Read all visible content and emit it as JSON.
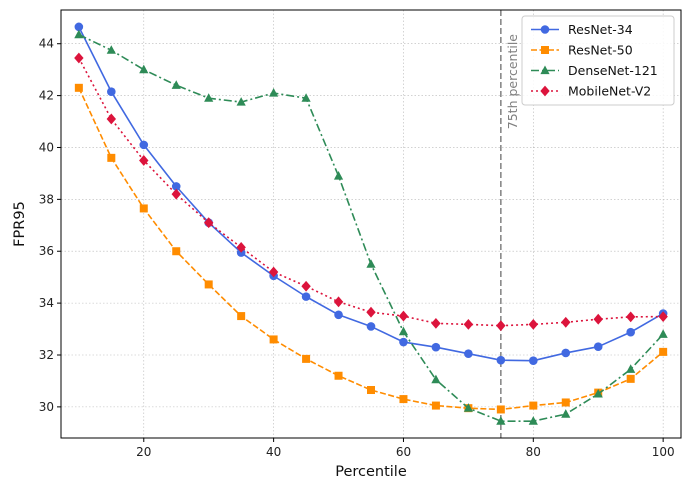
{
  "chart_data": {
    "type": "line",
    "title": "",
    "xlabel": "Percentile",
    "ylabel": "FPR95",
    "xlim": [
      7.25,
      102.75
    ],
    "ylim": [
      28.8,
      45.3
    ],
    "xticks": [
      20,
      40,
      60,
      80,
      100
    ],
    "yticks": [
      30,
      32,
      34,
      36,
      38,
      40,
      42,
      44
    ],
    "grid": true,
    "legend_position": "top-right",
    "x": [
      10,
      15,
      20,
      25,
      30,
      35,
      40,
      45,
      50,
      55,
      60,
      65,
      70,
      75,
      80,
      85,
      90,
      95,
      100
    ],
    "series": [
      {
        "name": "ResNet-34",
        "color": "#4169e1",
        "marker": "circle",
        "line_style": "solid",
        "values": [
          44.65,
          42.15,
          40.1,
          38.5,
          37.1,
          35.95,
          35.05,
          34.25,
          33.55,
          33.1,
          32.5,
          32.3,
          32.05,
          31.8,
          31.78,
          32.08,
          32.32,
          32.88,
          33.6
        ]
      },
      {
        "name": "ResNet-50",
        "color": "#ff8c00",
        "marker": "square",
        "line_style": "dashed",
        "values": [
          42.3,
          39.6,
          37.65,
          36.0,
          34.72,
          33.5,
          32.6,
          31.85,
          31.2,
          30.65,
          30.3,
          30.05,
          29.95,
          29.9,
          30.05,
          30.17,
          30.55,
          31.08,
          32.12
        ]
      },
      {
        "name": "DenseNet-121",
        "color": "#2e8b57",
        "marker": "triangle",
        "line_style": "dashdot",
        "values": [
          44.35,
          43.75,
          43.0,
          42.4,
          41.9,
          41.75,
          42.1,
          41.9,
          38.9,
          35.5,
          32.9,
          31.05,
          29.95,
          29.45,
          29.45,
          29.72,
          30.5,
          31.45,
          32.8
        ]
      },
      {
        "name": "MobileNet-V2",
        "color": "#dc143c",
        "marker": "diamond",
        "line_style": "dotted",
        "values": [
          43.45,
          41.1,
          39.5,
          38.2,
          37.1,
          36.15,
          35.2,
          34.65,
          34.05,
          33.65,
          33.5,
          33.22,
          33.18,
          33.13,
          33.18,
          33.26,
          33.38,
          33.47,
          33.48
        ]
      }
    ],
    "reference_line": {
      "x": 75,
      "label": "75th percentile",
      "color": "#808080",
      "style": "dashed"
    }
  }
}
